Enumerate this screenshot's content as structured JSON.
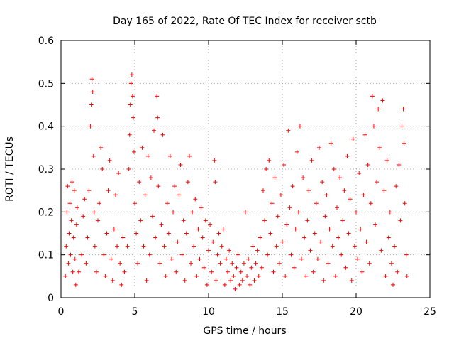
{
  "chart_data": {
    "type": "scatter",
    "title": "Day 165 of 2022, Rate Of TEC Index for receiver sctb",
    "xlabel": "GPS time / hours",
    "ylabel": "ROTI / TECUs",
    "xlim": [
      0,
      25
    ],
    "ylim": [
      0,
      0.6
    ],
    "xticks": [
      "0",
      "5",
      "10",
      "15",
      "20",
      "25"
    ],
    "yticks": [
      "0",
      "0.1",
      "0.2",
      "0.3",
      "0.4",
      "0.5",
      "0.6"
    ],
    "grid": true,
    "marker": "+",
    "color": "#ff0000",
    "series": [
      {
        "points": [
          [
            0.3,
            0.05
          ],
          [
            0.35,
            0.12
          ],
          [
            0.4,
            0.2
          ],
          [
            0.45,
            0.26
          ],
          [
            0.5,
            0.08
          ],
          [
            0.55,
            0.15
          ],
          [
            0.6,
            0.22
          ],
          [
            0.65,
            0.1
          ],
          [
            0.7,
            0.18
          ],
          [
            0.75,
            0.27
          ],
          [
            0.8,
            0.06
          ],
          [
            0.85,
            0.14
          ],
          [
            0.9,
            0.25
          ],
          [
            0.95,
            0.09
          ],
          [
            1.0,
            0.03
          ],
          [
            1.05,
            0.17
          ],
          [
            1.1,
            0.21
          ],
          [
            1.2,
            0.06
          ],
          [
            1.4,
            0.1
          ],
          [
            1.5,
            0.19
          ],
          [
            1.6,
            0.23
          ],
          [
            1.7,
            0.08
          ],
          [
            1.8,
            0.14
          ],
          [
            1.9,
            0.25
          ],
          [
            2.0,
            0.4
          ],
          [
            2.05,
            0.45
          ],
          [
            2.1,
            0.51
          ],
          [
            2.15,
            0.48
          ],
          [
            2.2,
            0.33
          ],
          [
            2.25,
            0.2
          ],
          [
            2.3,
            0.12
          ],
          [
            2.4,
            0.06
          ],
          [
            2.5,
            0.18
          ],
          [
            2.6,
            0.22
          ],
          [
            2.7,
            0.35
          ],
          [
            2.8,
            0.3
          ],
          [
            2.9,
            0.1
          ],
          [
            3.0,
            0.05
          ],
          [
            3.1,
            0.15
          ],
          [
            3.2,
            0.25
          ],
          [
            3.3,
            0.32
          ],
          [
            3.4,
            0.09
          ],
          [
            3.5,
            0.04
          ],
          [
            3.6,
            0.16
          ],
          [
            3.7,
            0.24
          ],
          [
            3.8,
            0.12
          ],
          [
            3.9,
            0.29
          ],
          [
            4.0,
            0.08
          ],
          [
            4.1,
            0.03
          ],
          [
            4.2,
            0.14
          ],
          [
            4.3,
            0.06
          ],
          [
            4.5,
            0.12
          ],
          [
            4.6,
            0.3
          ],
          [
            4.65,
            0.38
          ],
          [
            4.7,
            0.45
          ],
          [
            4.75,
            0.5
          ],
          [
            4.8,
            0.52
          ],
          [
            4.85,
            0.47
          ],
          [
            4.9,
            0.42
          ],
          [
            4.95,
            0.34
          ],
          [
            5.0,
            0.22
          ],
          [
            5.1,
            0.15
          ],
          [
            5.2,
            0.08
          ],
          [
            5.3,
            0.27
          ],
          [
            5.4,
            0.18
          ],
          [
            5.5,
            0.35
          ],
          [
            5.6,
            0.12
          ],
          [
            5.7,
            0.24
          ],
          [
            5.8,
            0.04
          ],
          [
            5.9,
            0.33
          ],
          [
            6.0,
            0.1
          ],
          [
            6.1,
            0.28
          ],
          [
            6.2,
            0.19
          ],
          [
            6.3,
            0.39
          ],
          [
            6.4,
            0.14
          ],
          [
            6.5,
            0.47
          ],
          [
            6.55,
            0.42
          ],
          [
            6.6,
            0.26
          ],
          [
            6.7,
            0.08
          ],
          [
            6.8,
            0.17
          ],
          [
            6.9,
            0.38
          ],
          [
            7.0,
            0.12
          ],
          [
            7.1,
            0.05
          ],
          [
            7.2,
            0.22
          ],
          [
            7.3,
            0.15
          ],
          [
            7.4,
            0.33
          ],
          [
            7.5,
            0.09
          ],
          [
            7.6,
            0.2
          ],
          [
            7.7,
            0.26
          ],
          [
            7.8,
            0.06
          ],
          [
            7.9,
            0.13
          ],
          [
            8.0,
            0.24
          ],
          [
            8.1,
            0.31
          ],
          [
            8.2,
            0.1
          ],
          [
            8.3,
            0.18
          ],
          [
            8.4,
            0.04
          ],
          [
            8.5,
            0.15
          ],
          [
            8.6,
            0.27
          ],
          [
            8.7,
            0.33
          ],
          [
            8.8,
            0.08
          ],
          [
            8.9,
            0.2
          ],
          [
            9.0,
            0.12
          ],
          [
            9.1,
            0.23
          ],
          [
            9.2,
            0.05
          ],
          [
            9.3,
            0.16
          ],
          [
            9.4,
            0.09
          ],
          [
            9.5,
            0.21
          ],
          [
            9.6,
            0.14
          ],
          [
            9.7,
            0.07
          ],
          [
            9.8,
            0.18
          ],
          [
            9.9,
            0.03
          ],
          [
            10.0,
            0.11
          ],
          [
            10.1,
            0.17
          ],
          [
            10.2,
            0.06
          ],
          [
            10.3,
            0.13
          ],
          [
            10.4,
            0.32
          ],
          [
            10.45,
            0.27
          ],
          [
            10.5,
            0.04
          ],
          [
            10.6,
            0.1
          ],
          [
            10.7,
            0.15
          ],
          [
            10.8,
            0.08
          ],
          [
            10.9,
            0.12
          ],
          [
            11.0,
            0.16
          ],
          [
            11.1,
            0.03
          ],
          [
            11.2,
            0.09
          ],
          [
            11.3,
            0.06
          ],
          [
            11.4,
            0.11
          ],
          [
            11.5,
            0.04
          ],
          [
            11.6,
            0.08
          ],
          [
            11.7,
            0.05
          ],
          [
            11.8,
            0.02
          ],
          [
            11.9,
            0.07
          ],
          [
            12.0,
            0.1
          ],
          [
            12.1,
            0.03
          ],
          [
            12.2,
            0.06
          ],
          [
            12.3,
            0.04
          ],
          [
            12.4,
            0.08
          ],
          [
            12.5,
            0.2
          ],
          [
            12.6,
            0.05
          ],
          [
            12.7,
            0.09
          ],
          [
            12.8,
            0.03
          ],
          [
            12.9,
            0.07
          ],
          [
            13.0,
            0.12
          ],
          [
            13.1,
            0.04
          ],
          [
            13.2,
            0.08
          ],
          [
            13.3,
            0.11
          ],
          [
            13.4,
            0.05
          ],
          [
            13.5,
            0.14
          ],
          [
            13.6,
            0.07
          ],
          [
            13.7,
            0.25
          ],
          [
            13.8,
            0.18
          ],
          [
            13.9,
            0.3
          ],
          [
            14.0,
            0.1
          ],
          [
            14.1,
            0.32
          ],
          [
            14.2,
            0.15
          ],
          [
            14.3,
            0.22
          ],
          [
            14.4,
            0.06
          ],
          [
            14.5,
            0.28
          ],
          [
            14.6,
            0.12
          ],
          [
            14.7,
            0.19
          ],
          [
            14.8,
            0.08
          ],
          [
            14.9,
            0.24
          ],
          [
            15.0,
            0.13
          ],
          [
            15.1,
            0.31
          ],
          [
            15.2,
            0.05
          ],
          [
            15.3,
            0.17
          ],
          [
            15.4,
            0.39
          ],
          [
            15.5,
            0.21
          ],
          [
            15.6,
            0.1
          ],
          [
            15.7,
            0.26
          ],
          [
            15.8,
            0.07
          ],
          [
            15.9,
            0.16
          ],
          [
            16.0,
            0.34
          ],
          [
            16.1,
            0.2
          ],
          [
            16.2,
            0.4
          ],
          [
            16.3,
            0.09
          ],
          [
            16.4,
            0.28
          ],
          [
            16.5,
            0.14
          ],
          [
            16.6,
            0.05
          ],
          [
            16.7,
            0.18
          ],
          [
            16.8,
            0.25
          ],
          [
            16.9,
            0.11
          ],
          [
            17.0,
            0.32
          ],
          [
            17.1,
            0.06
          ],
          [
            17.2,
            0.15
          ],
          [
            17.3,
            0.22
          ],
          [
            17.4,
            0.09
          ],
          [
            17.5,
            0.35
          ],
          [
            17.6,
            0.13
          ],
          [
            17.7,
            0.27
          ],
          [
            17.8,
            0.04
          ],
          [
            17.9,
            0.19
          ],
          [
            18.0,
            0.24
          ],
          [
            18.1,
            0.08
          ],
          [
            18.2,
            0.16
          ],
          [
            18.3,
            0.36
          ],
          [
            18.4,
            0.12
          ],
          [
            18.5,
            0.3
          ],
          [
            18.6,
            0.05
          ],
          [
            18.7,
            0.21
          ],
          [
            18.8,
            0.14
          ],
          [
            18.9,
            0.28
          ],
          [
            19.0,
            0.1
          ],
          [
            19.1,
            0.18
          ],
          [
            19.2,
            0.25
          ],
          [
            19.3,
            0.07
          ],
          [
            19.4,
            0.33
          ],
          [
            19.5,
            0.15
          ],
          [
            19.6,
            0.23
          ],
          [
            19.7,
            0.04
          ],
          [
            19.8,
            0.37
          ],
          [
            19.9,
            0.12
          ],
          [
            20.0,
            0.2
          ],
          [
            20.1,
            0.09
          ],
          [
            20.2,
            0.29
          ],
          [
            20.3,
            0.16
          ],
          [
            20.4,
            0.06
          ],
          [
            20.5,
            0.24
          ],
          [
            20.6,
            0.38
          ],
          [
            20.7,
            0.13
          ],
          [
            20.8,
            0.31
          ],
          [
            20.9,
            0.08
          ],
          [
            21.0,
            0.22
          ],
          [
            21.1,
            0.47
          ],
          [
            21.2,
            0.4
          ],
          [
            21.3,
            0.17
          ],
          [
            21.4,
            0.27
          ],
          [
            21.5,
            0.44
          ],
          [
            21.6,
            0.35
          ],
          [
            21.7,
            0.11
          ],
          [
            21.8,
            0.46
          ],
          [
            21.9,
            0.25
          ],
          [
            22.0,
            0.05
          ],
          [
            22.1,
            0.32
          ],
          [
            22.2,
            0.14
          ],
          [
            22.3,
            0.2
          ],
          [
            22.4,
            0.08
          ],
          [
            22.5,
            0.03
          ],
          [
            22.6,
            0.12
          ],
          [
            22.7,
            0.26
          ],
          [
            22.8,
            0.06
          ],
          [
            22.9,
            0.31
          ],
          [
            23.0,
            0.18
          ],
          [
            23.1,
            0.4
          ],
          [
            23.2,
            0.44
          ],
          [
            23.25,
            0.36
          ],
          [
            23.3,
            0.22
          ],
          [
            23.4,
            0.1
          ],
          [
            23.45,
            0.05
          ]
        ]
      }
    ]
  }
}
